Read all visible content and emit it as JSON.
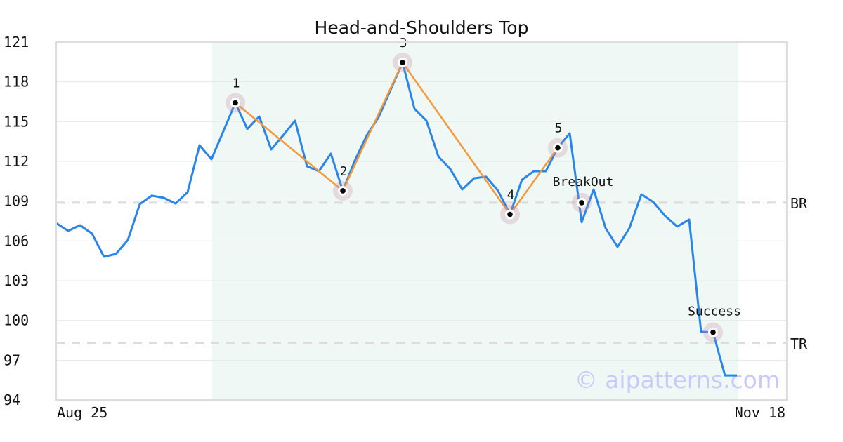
{
  "chart_data": {
    "type": "line",
    "title": "Head-and-Shoulders Top",
    "xlabel": "",
    "ylabel": "",
    "ylim": [
      94,
      121
    ],
    "yticks": [
      94,
      97,
      100,
      103,
      106,
      109,
      112,
      115,
      118,
      121
    ],
    "xtick_labels": [
      {
        "index": 0,
        "label": "Aug 25"
      },
      {
        "index": 61,
        "label": "Nov 18"
      }
    ],
    "x_count": 61,
    "grid": true,
    "series": [
      {
        "color": "#2a85e8",
        "values": [
          107.34,
          106.76,
          107.18,
          106.55,
          104.8,
          105.01,
          106.07,
          108.77,
          109.41,
          109.25,
          108.82,
          109.67,
          113.22,
          112.16,
          114.28,
          116.42,
          114.44,
          115.39,
          112.9,
          113.96,
          115.07,
          111.63,
          111.26,
          112.58,
          109.78,
          112.05,
          113.96,
          115.34,
          117.4,
          119.46,
          115.97,
          115.07,
          112.37,
          111.42,
          109.88,
          110.73,
          110.84,
          109.78,
          108.0,
          110.62,
          111.26,
          111.26,
          113.02,
          114.12,
          107.41,
          109.88,
          106.97,
          105.54,
          106.97,
          109.51,
          108.93,
          107.87,
          107.08,
          107.61,
          99.14,
          99.1,
          95.85,
          95.85
        ]
      }
    ],
    "pattern_line": {
      "color": "#f5983a",
      "points": [
        "1",
        "2",
        "3",
        "4",
        "5"
      ]
    },
    "markers": [
      {
        "label": "1",
        "index": 15,
        "value": 116.42
      },
      {
        "label": "2",
        "index": 24,
        "value": 109.78
      },
      {
        "label": "3",
        "index": 29,
        "value": 119.46
      },
      {
        "label": "4",
        "index": 38,
        "value": 108.0
      },
      {
        "label": "5",
        "index": 42,
        "value": 113.02
      },
      {
        "label": "BreakOut",
        "index": 44,
        "value": 108.88
      },
      {
        "label": "Success",
        "index": 55,
        "value": 99.1
      }
    ],
    "reference_lines": [
      {
        "label": "BR",
        "value": 108.88
      },
      {
        "label": "TR",
        "value": 98.29
      }
    ],
    "shaded_range": {
      "from_index": 13,
      "to_index": 57,
      "color": "#eff8f4"
    },
    "watermark": "© aipatterns.com"
  }
}
